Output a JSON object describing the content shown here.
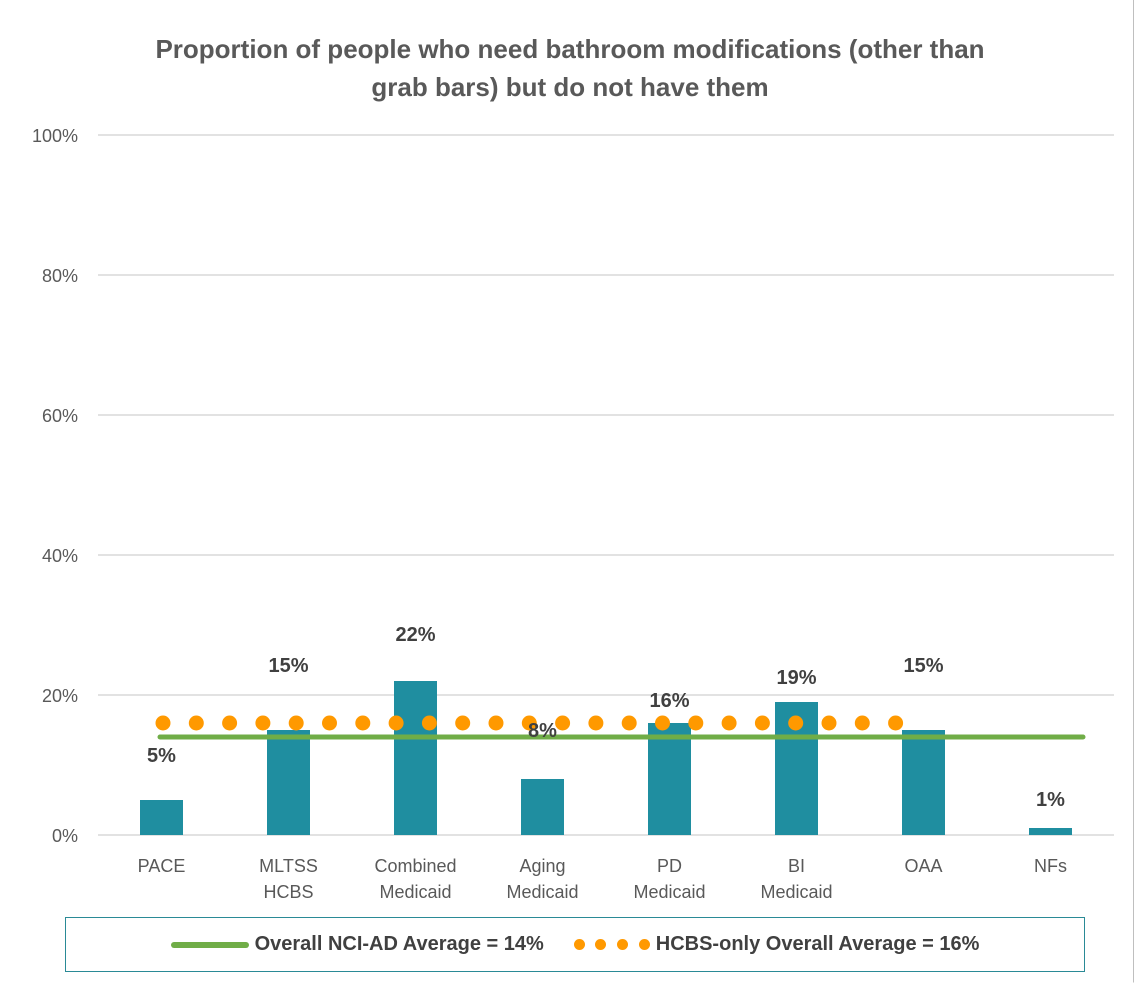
{
  "chart_data": {
    "type": "bar",
    "title": "Proportion of people who need bathroom modifications (other than grab bars) but do not have them",
    "categories": [
      [
        "PACE"
      ],
      [
        "MLTSS",
        "HCBS"
      ],
      [
        "Combined",
        "Medicaid"
      ],
      [
        "Aging",
        "Medicaid"
      ],
      [
        "PD",
        "Medicaid"
      ],
      [
        "BI",
        "Medicaid"
      ],
      [
        "OAA"
      ],
      [
        "NFs"
      ]
    ],
    "values": [
      5,
      15,
      22,
      8,
      16,
      19,
      15,
      1
    ],
    "data_labels": [
      "5%",
      "15%",
      "22%",
      "8%",
      "16%",
      "19%",
      "15%",
      "1%"
    ],
    "ylim": [
      0,
      100
    ],
    "yticks": [
      0,
      20,
      40,
      60,
      80,
      100
    ],
    "ytick_labels": [
      "0%",
      "20%",
      "40%",
      "60%",
      "80%",
      "100%"
    ],
    "grid": true,
    "reference_lines": [
      {
        "name": "Overall NCI-AD Average = 14%",
        "value": 14,
        "style": "solid",
        "color": "#70ad47"
      },
      {
        "name": "HCBS-only Overall Average = 16%",
        "value": 16,
        "style": "dotted",
        "color": "#ff9900"
      }
    ],
    "legend_placement": "bottom",
    "bar_color": "#1f8ea0"
  }
}
